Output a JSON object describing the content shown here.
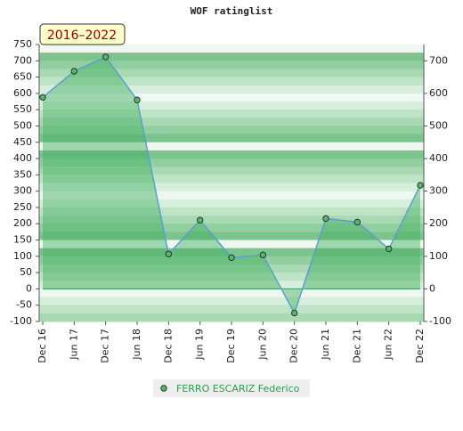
{
  "chart_data": {
    "type": "line",
    "title": "WOF ratinglist",
    "badge": "2016–2022",
    "categories": [
      "Dec 16",
      "Jun 17",
      "Dec 17",
      "Jun 18",
      "Dec 18",
      "Jun 19",
      "Dec 19",
      "Jun 20",
      "Dec 20",
      "Jun 21",
      "Dec 21",
      "Jun 22",
      "Dec 22"
    ],
    "series": [
      {
        "name": "FERRO ESCARIZ Federico",
        "color": "#5aa0cc",
        "marker_color": "#5cb85c",
        "values": [
          588,
          668,
          712,
          580,
          107,
          211,
          96,
          104,
          -74,
          216,
          205,
          123,
          318
        ]
      }
    ],
    "ylim": [
      -100,
      750
    ],
    "yticks": [
      -100,
      -50,
      0,
      50,
      100,
      150,
      200,
      250,
      300,
      350,
      400,
      450,
      500,
      550,
      600,
      650,
      700,
      750
    ],
    "y2lim": [
      -100,
      750
    ],
    "y2ticks": [
      -100,
      0,
      100,
      200,
      300,
      400,
      500,
      600,
      700
    ],
    "grid": true
  }
}
